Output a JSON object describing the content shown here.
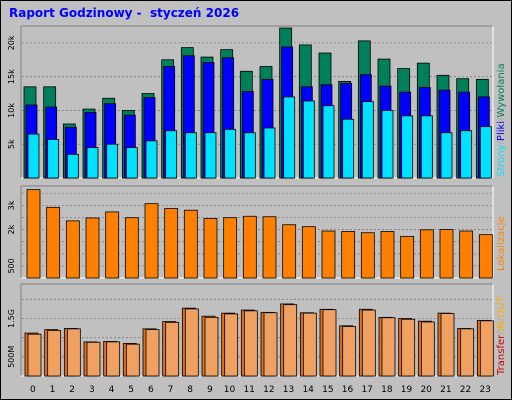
{
  "title": "Raport Godzinowy -  styczeń 2026",
  "colors": {
    "background": "#c0c0c0",
    "plot_background": "#c0c0c0",
    "grid": "#808080",
    "title": "#0000ff",
    "hits": "#00805a",
    "files": "#0000ff",
    "pages": "#00e0ff",
    "visits": "#ff8000",
    "transfer_in": "#e07020",
    "transfer_out": "#f0a060",
    "transfer_label": "#cc0000",
    "in_label": "#ffaa00",
    "out_label": "#ffaa00",
    "slash": "#aaaaaa"
  },
  "chart_data": [
    {
      "type": "bar",
      "name": "requests",
      "categories": [
        "0",
        "1",
        "2",
        "3",
        "4",
        "5",
        "6",
        "7",
        "8",
        "9",
        "10",
        "11",
        "12",
        "13",
        "14",
        "15",
        "16",
        "17",
        "18",
        "19",
        "20",
        "21",
        "22",
        "23"
      ],
      "ylim": [
        0,
        22500
      ],
      "yticks": [
        5000,
        10000,
        15000,
        20000
      ],
      "ytick_labels": [
        "5k",
        "10k",
        "15k",
        "20k"
      ],
      "series": [
        {
          "name": "Wywołania",
          "values": [
            13500,
            13500,
            8000,
            10200,
            11800,
            10000,
            12500,
            17500,
            19300,
            17900,
            19000,
            15800,
            16500,
            22200,
            19700,
            18500,
            14300,
            20300,
            17600,
            16200,
            17000,
            15200,
            14700,
            14600
          ]
        },
        {
          "name": "Pliki",
          "values": [
            10800,
            10500,
            7500,
            9700,
            11000,
            9300,
            11900,
            16500,
            18100,
            17100,
            17800,
            12800,
            14600,
            19400,
            13500,
            13800,
            14000,
            15300,
            13600,
            12700,
            13400,
            13000,
            12700,
            12000
          ]
        },
        {
          "name": "Strony",
          "values": [
            6500,
            5700,
            3500,
            4500,
            5000,
            4500,
            5500,
            7000,
            6700,
            6700,
            7200,
            6700,
            7400,
            12000,
            11400,
            10700,
            8700,
            11300,
            10000,
            9200,
            9200,
            6700,
            7000,
            7600
          ]
        }
      ],
      "axis_label_parts": [
        "Strony",
        "/",
        "Pliki",
        "/",
        "Wywołania"
      ]
    },
    {
      "type": "bar",
      "name": "visits",
      "categories": [
        "0",
        "1",
        "2",
        "3",
        "4",
        "5",
        "6",
        "7",
        "8",
        "9",
        "10",
        "11",
        "12",
        "13",
        "14",
        "15",
        "16",
        "17",
        "18",
        "19",
        "20",
        "21",
        "22",
        "23"
      ],
      "ylim": [
        0,
        3800
      ],
      "yticks": [
        500,
        1000,
        1500,
        2000,
        2500,
        3000,
        3500
      ],
      "ytick_labels": [
        "500",
        "",
        "",
        "2k",
        "",
        "3k",
        ""
      ],
      "series": [
        {
          "name": "Lokalizacje",
          "values": [
            3650,
            2920,
            2360,
            2480,
            2730,
            2490,
            3070,
            2870,
            2800,
            2460,
            2490,
            2550,
            2530,
            2200,
            2120,
            1940,
            1920,
            1870,
            1920,
            1720,
            1990,
            2000,
            1940,
            1790
          ]
        }
      ],
      "axis_label_parts": [
        "Lokalizacje"
      ]
    },
    {
      "type": "bar",
      "name": "transfer",
      "categories": [
        "0",
        "1",
        "2",
        "3",
        "4",
        "5",
        "6",
        "7",
        "8",
        "9",
        "10",
        "11",
        "12",
        "13",
        "14",
        "15",
        "16",
        "17",
        "18",
        "19",
        "20",
        "21",
        "22",
        "23"
      ],
      "ylim": [
        0,
        2400
      ],
      "yticks": [
        500,
        1000,
        1500,
        2000
      ],
      "ytick_labels": [
        "500M",
        "",
        "1.5G",
        ""
      ],
      "series": [
        {
          "name": "IN",
          "values": [
            1120,
            1210,
            1240,
            890,
            900,
            850,
            1230,
            1420,
            1770,
            1560,
            1640,
            1720,
            1660,
            1880,
            1650,
            1740,
            1310,
            1740,
            1530,
            1500,
            1430,
            1640,
            1240,
            1450
          ]
        },
        {
          "name": "OUT",
          "values": [
            1090,
            1190,
            1230,
            880,
            890,
            830,
            1210,
            1400,
            1750,
            1530,
            1620,
            1700,
            1650,
            1860,
            1640,
            1730,
            1290,
            1720,
            1520,
            1480,
            1410,
            1630,
            1230,
            1440
          ]
        }
      ],
      "axis_label_parts": [
        "Transfer",
        "/",
        "IN",
        "/",
        "OUT"
      ]
    }
  ]
}
